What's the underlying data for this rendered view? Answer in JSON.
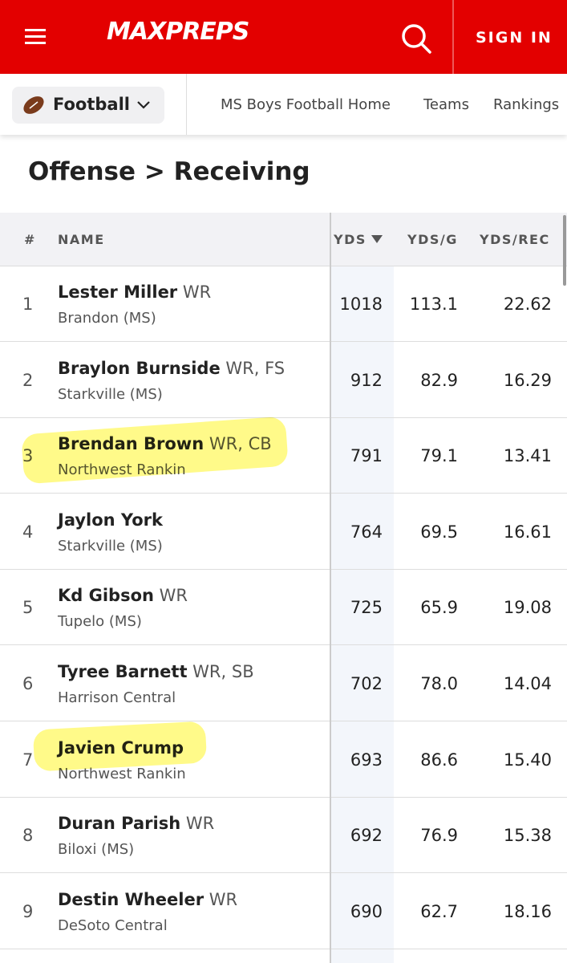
{
  "header": {
    "logo": "MAXPREPS",
    "sign_in": "SIGN IN"
  },
  "nav": {
    "sport": "Football",
    "links": [
      "MS Boys Football Home",
      "Teams",
      "Rankings"
    ]
  },
  "section_title": "Offense > Receiving",
  "table": {
    "columns": [
      "#",
      "NAME",
      "YDS",
      "YDS/G",
      "YDS/REC"
    ],
    "rows": [
      {
        "rank": "1",
        "name": "Lester Miller",
        "position": "WR",
        "school": "Brandon (MS)",
        "yds": "1018",
        "yds_per_game": "113.1",
        "yds_per_rec": "22.62"
      },
      {
        "rank": "2",
        "name": "Braylon Burnside",
        "position": "WR, FS",
        "school": "Starkville (MS)",
        "yds": "912",
        "yds_per_game": "82.9",
        "yds_per_rec": "16.29"
      },
      {
        "rank": "3",
        "name": "Brendan Brown",
        "position": "WR, CB",
        "school": "Northwest Rankin",
        "yds": "791",
        "yds_per_game": "79.1",
        "yds_per_rec": "13.41"
      },
      {
        "rank": "4",
        "name": "Jaylon York",
        "position": null,
        "school": "Starkville (MS)",
        "yds": "764",
        "yds_per_game": "69.5",
        "yds_per_rec": "16.61"
      },
      {
        "rank": "5",
        "name": "Kd Gibson",
        "position": "WR",
        "school": "Tupelo (MS)",
        "yds": "725",
        "yds_per_game": "65.9",
        "yds_per_rec": "19.08"
      },
      {
        "rank": "6",
        "name": "Tyree Barnett",
        "position": "WR, SB",
        "school": "Harrison Central",
        "yds": "702",
        "yds_per_game": "78.0",
        "yds_per_rec": "14.04"
      },
      {
        "rank": "7",
        "name": "Javien Crump",
        "position": null,
        "school": "Northwest Rankin",
        "yds": "693",
        "yds_per_game": "86.6",
        "yds_per_rec": "15.40"
      },
      {
        "rank": "8",
        "name": "Duran Parish",
        "position": "WR",
        "school": "Biloxi (MS)",
        "yds": "692",
        "yds_per_game": "76.9",
        "yds_per_rec": "15.38"
      },
      {
        "rank": "9",
        "name": "Destin Wheeler",
        "position": "WR",
        "school": "DeSoto Central",
        "yds": "690",
        "yds_per_game": "62.7",
        "yds_per_rec": "18.16"
      }
    ]
  }
}
